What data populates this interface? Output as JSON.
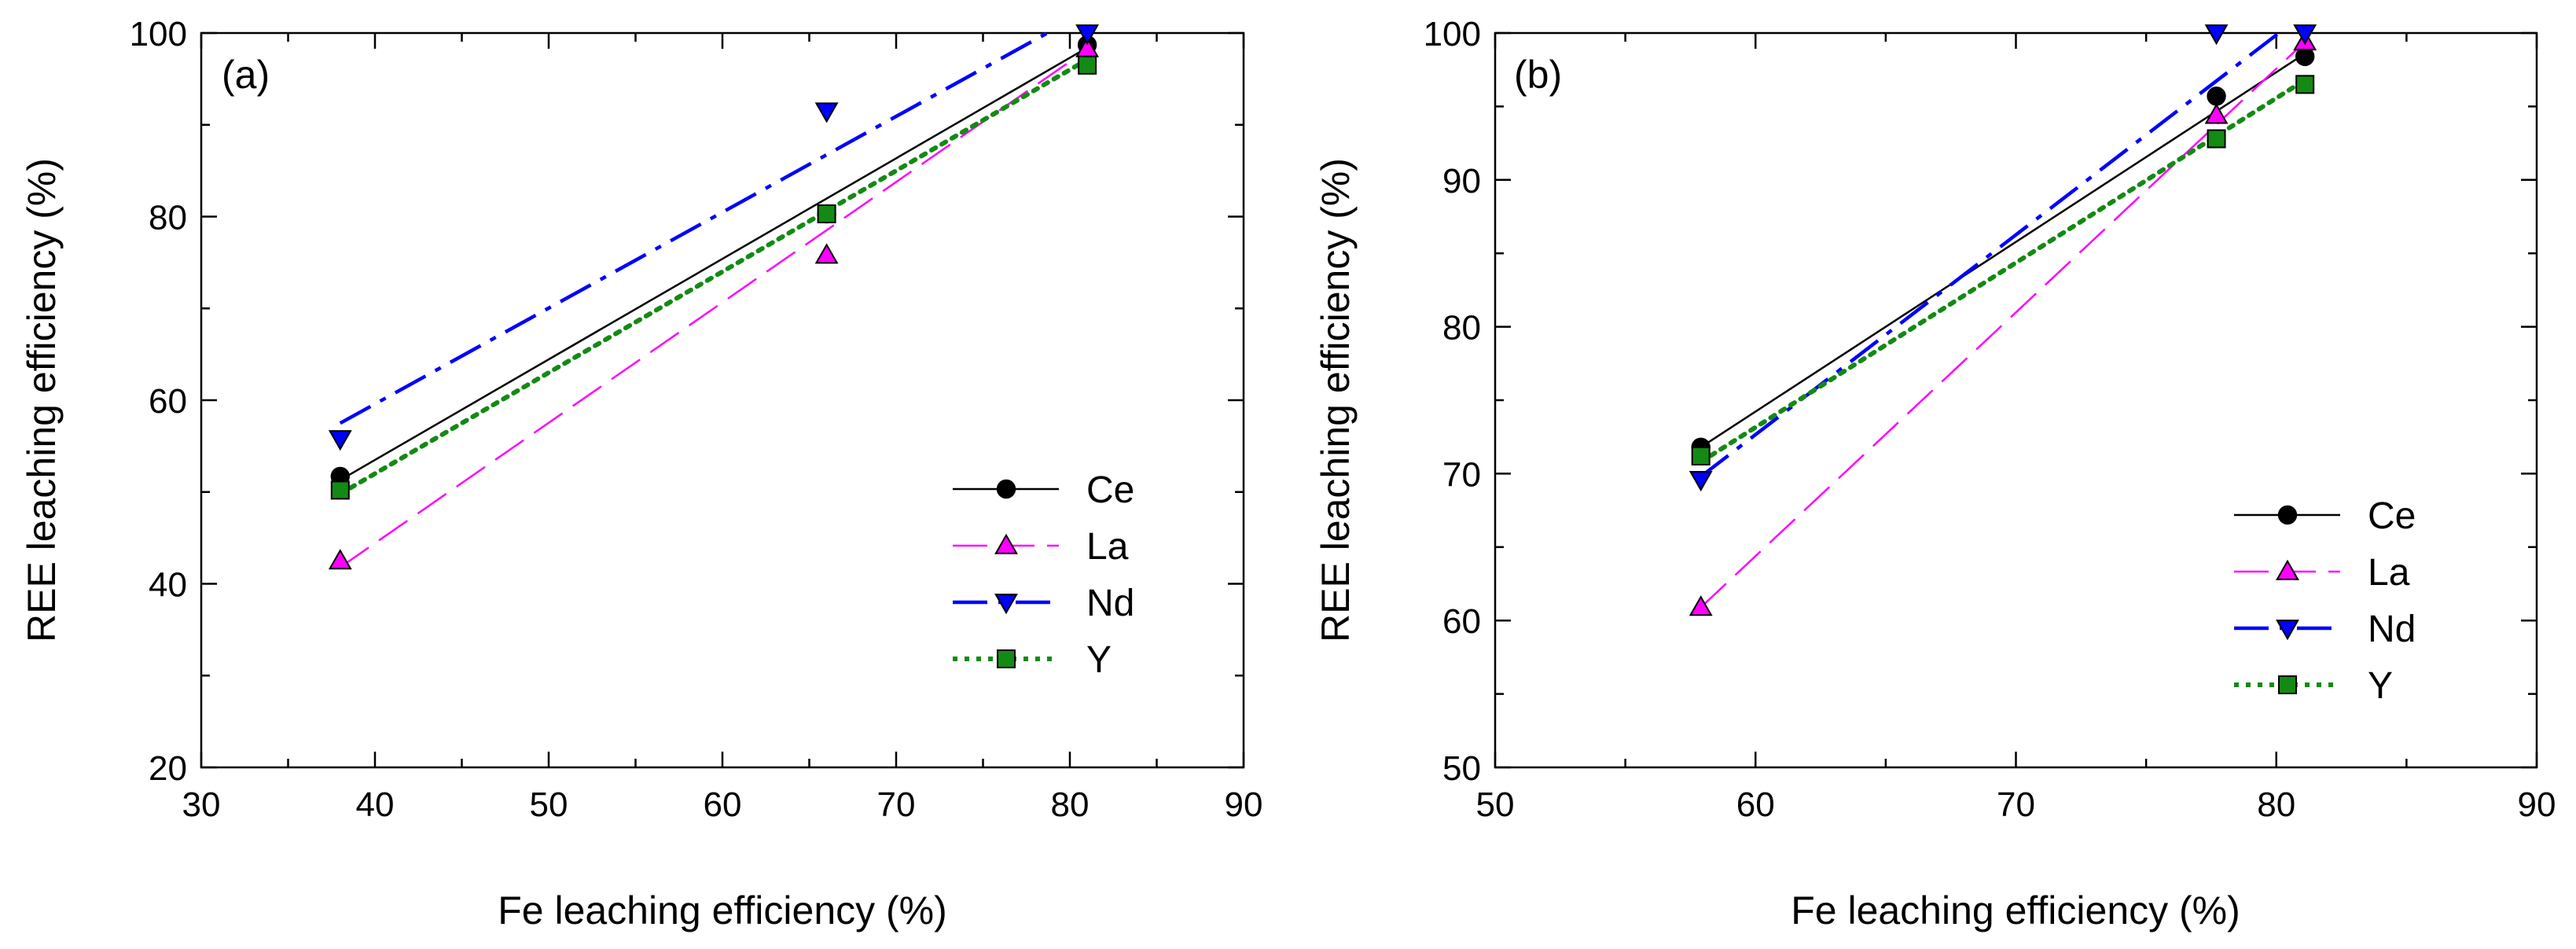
{
  "chart_data": [
    {
      "type": "scatter",
      "panel_label": "(a)",
      "xlabel": "Fe leaching efficiency (%)",
      "ylabel": "REE leaching efficiency (%)",
      "xlim": [
        30,
        90
      ],
      "ylim": [
        20,
        100
      ],
      "x_ticks": [
        30,
        40,
        50,
        60,
        70,
        80,
        90
      ],
      "y_ticks": [
        20,
        40,
        60,
        80,
        100
      ],
      "legend_position": "right",
      "series": [
        {
          "name": "Ce",
          "color": "#000000",
          "marker": "circle",
          "x": [
            38,
            66,
            81
          ],
          "values": [
            51.7,
            80.3,
            98.7
          ],
          "fit": {
            "x": [
              38,
              81
            ],
            "y": [
              51.3,
              98.4
            ]
          }
        },
        {
          "name": "La",
          "color": "#ff00ff",
          "marker": "triangle-up",
          "x": [
            38,
            66,
            81
          ],
          "values": [
            42.5,
            75.8,
            98.3
          ],
          "fit": {
            "x": [
              38,
              81
            ],
            "y": [
              41.8,
              98.2
            ]
          }
        },
        {
          "name": "Nd",
          "color": "#0000ff",
          "marker": "triangle-down",
          "x": [
            38,
            66,
            81
          ],
          "values": [
            55.8,
            91.5,
            100
          ],
          "fit": {
            "x": [
              38,
              78.7
            ],
            "y": [
              57.5,
              100
            ]
          }
        },
        {
          "name": "Y",
          "color": "#138a13",
          "marker": "square",
          "x": [
            38,
            66,
            81
          ],
          "values": [
            50.2,
            80.3,
            96.5
          ],
          "fit": {
            "x": [
              38,
              81
            ],
            "y": [
              49.8,
              97.1
            ]
          }
        }
      ]
    },
    {
      "type": "scatter",
      "panel_label": "(b)",
      "xlabel": "Fe leaching efficiency (%)",
      "ylabel": "REE leaching efficiency (%)",
      "xlim": [
        50,
        90
      ],
      "ylim": [
        50,
        100
      ],
      "x_ticks": [
        50,
        60,
        70,
        80,
        90
      ],
      "y_ticks": [
        50,
        60,
        70,
        80,
        90,
        100
      ],
      "legend_position": "right",
      "series": [
        {
          "name": "Ce",
          "color": "#000000",
          "marker": "circle",
          "x": [
            57.9,
            77.7,
            81.1
          ],
          "values": [
            71.8,
            95.7,
            98.4
          ],
          "fit": {
            "x": [
              57.9,
              81.1
            ],
            "y": [
              71.8,
              98.6
            ]
          }
        },
        {
          "name": "La",
          "color": "#ff00ff",
          "marker": "triangle-up",
          "x": [
            57.9,
            77.7,
            81.1
          ],
          "values": [
            60.9,
            94.4,
            99.4
          ],
          "fit": {
            "x": [
              57.9,
              81.1
            ],
            "y": [
              60.9,
              99.4
            ]
          }
        },
        {
          "name": "Nd",
          "color": "#0000ff",
          "marker": "triangle-down",
          "x": [
            57.9,
            77.7,
            81.1
          ],
          "values": [
            69.6,
            100,
            100
          ],
          "fit": {
            "x": [
              57.9,
              80.1
            ],
            "y": [
              69.8,
              100
            ]
          }
        },
        {
          "name": "Y",
          "color": "#138a13",
          "marker": "square",
          "x": [
            57.9,
            77.7,
            81.1
          ],
          "values": [
            71.2,
            92.8,
            96.5
          ],
          "fit": {
            "x": [
              57.9,
              81.1
            ],
            "y": [
              70.8,
              96.8
            ]
          }
        }
      ]
    }
  ]
}
